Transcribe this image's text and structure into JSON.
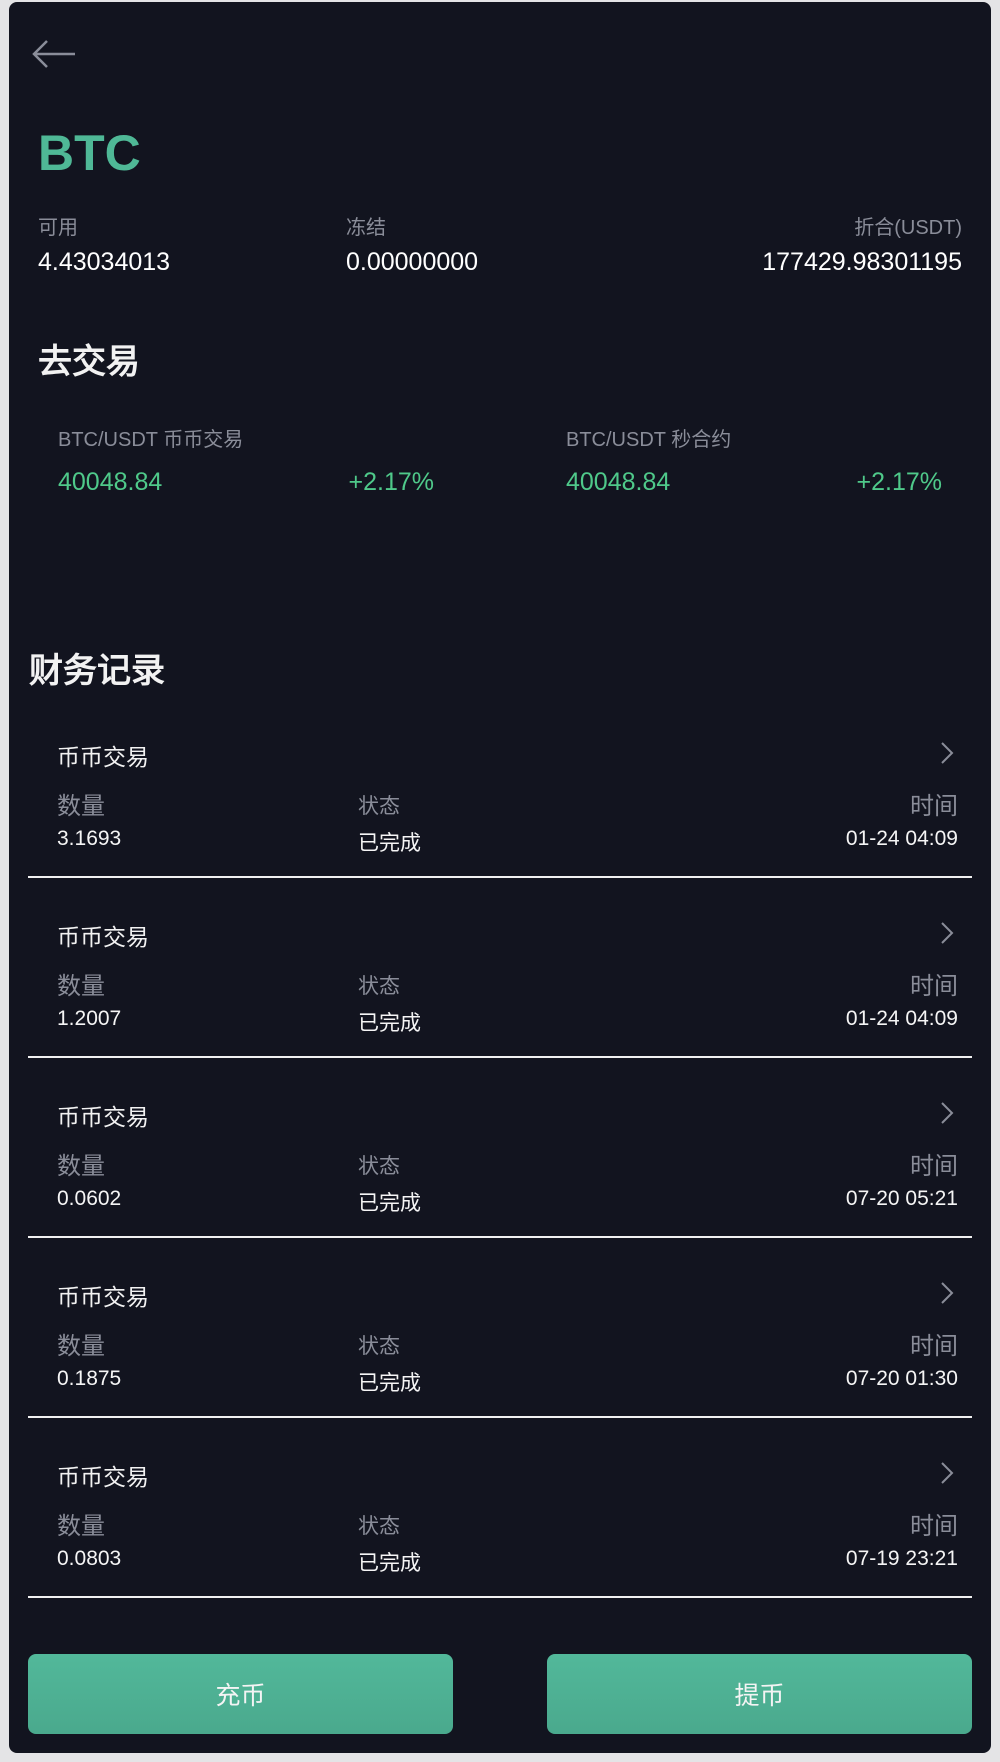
{
  "header": {
    "back_icon": "arrow-left-icon",
    "coin": "BTC"
  },
  "balance": {
    "available_label": "可用",
    "available_value": "4.43034013",
    "frozen_label": "冻结",
    "frozen_value": "0.00000000",
    "usdt_label": "折合(USDT)",
    "usdt_value": "177429.98301195"
  },
  "trade": {
    "title": "去交易",
    "pairs": [
      {
        "label": "BTC/USDT 币币交易",
        "price": "40048.84",
        "change": "+2.17%"
      },
      {
        "label": "BTC/USDT 秒合约",
        "price": "40048.84",
        "change": "+2.17%"
      }
    ]
  },
  "records": {
    "title": "财务记录",
    "qty_label": "数量",
    "status_label": "状态",
    "time_label": "时间",
    "items": [
      {
        "type": "币币交易",
        "qty": "3.1693",
        "status": "已完成",
        "time": "01-24 04:09"
      },
      {
        "type": "币币交易",
        "qty": "1.2007",
        "status": "已完成",
        "time": "01-24 04:09"
      },
      {
        "type": "币币交易",
        "qty": "0.0602",
        "status": "已完成",
        "time": "07-20 05:21"
      },
      {
        "type": "币币交易",
        "qty": "0.1875",
        "status": "已完成",
        "time": "07-20 01:30"
      },
      {
        "type": "币币交易",
        "qty": "0.0803",
        "status": "已完成",
        "time": "07-19 23:21"
      }
    ]
  },
  "actions": {
    "deposit": "充币",
    "withdraw": "提币"
  },
  "colors": {
    "accent": "#4fb896",
    "up": "#4fc98a",
    "background": "#12141f",
    "muted": "#8a8d99"
  }
}
